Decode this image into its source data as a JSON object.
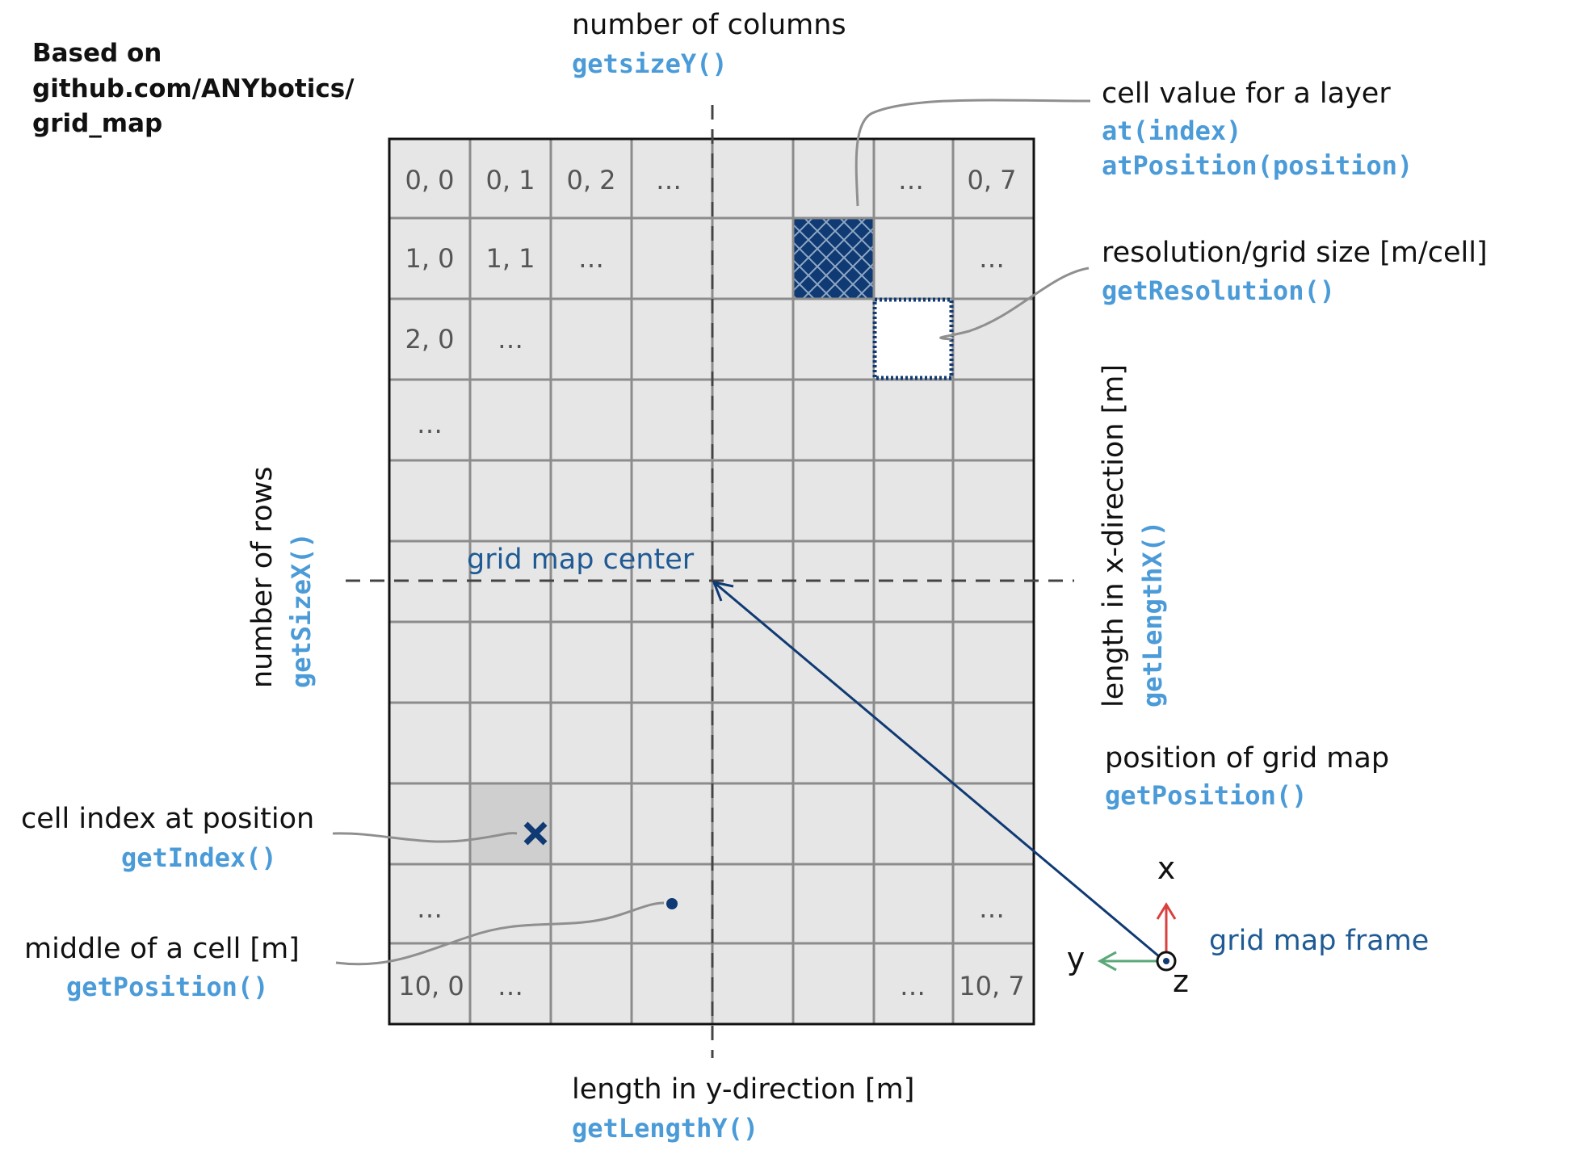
{
  "source_note": {
    "line1": "Based on",
    "line2": "github.com/ANYbotics/",
    "line3": "grid_map"
  },
  "columns_label": {
    "text": "number of columns",
    "code": "getsizeY()"
  },
  "rows_label": {
    "text": "number of rows",
    "code": "getSizeX()"
  },
  "length_x_label": {
    "text": "length in x-direction [m]",
    "code": "getLengthX()"
  },
  "length_y_label": {
    "text": "length in y-direction [m]",
    "code": "getLengthY()"
  },
  "cell_value_label": {
    "text": "cell value for a layer",
    "code1": "at(index)",
    "code2": "atPosition(position)"
  },
  "resolution_label": {
    "text": "resolution/grid size [m/cell]",
    "code": "getResolution()"
  },
  "center_label": {
    "text": "grid map center"
  },
  "position_label": {
    "text": "position of grid map",
    "code": "getPosition()"
  },
  "cell_index_label": {
    "text": "cell index at position",
    "code": "getIndex()"
  },
  "middle_cell_label": {
    "text": "middle of a cell [m]",
    "code": "getPosition()"
  },
  "frame": {
    "x": "x",
    "y": "y",
    "z": "z",
    "label": "grid map frame"
  },
  "cells": {
    "r0c0": "0, 0",
    "r0c1": "0, 1",
    "r0c2": "0, 2",
    "r0c3": "…",
    "r0c6": "…",
    "r0c7": "0, 7",
    "r1c0": "1, 0",
    "r1c1": "1, 1",
    "r1c2": "…",
    "r1c7": "…",
    "r2c0": "2, 0",
    "r2c1": "…",
    "r3c0": "…",
    "r9c0": "…",
    "r9c7": "…",
    "r10c0": "10, 0",
    "r10c1": "…",
    "r10c6": "…",
    "r10c7": "10, 7"
  },
  "colors": {
    "grid_fill": "#e6e6e6",
    "grid_line": "#8c8c8c",
    "navy": "#0f3a73",
    "code_blue": "#4a9bd8",
    "label_blue": "#1f5a94",
    "x_axis_red": "#d94040",
    "y_axis_green": "#5aa878",
    "gray_leader": "#8f8f8f"
  }
}
